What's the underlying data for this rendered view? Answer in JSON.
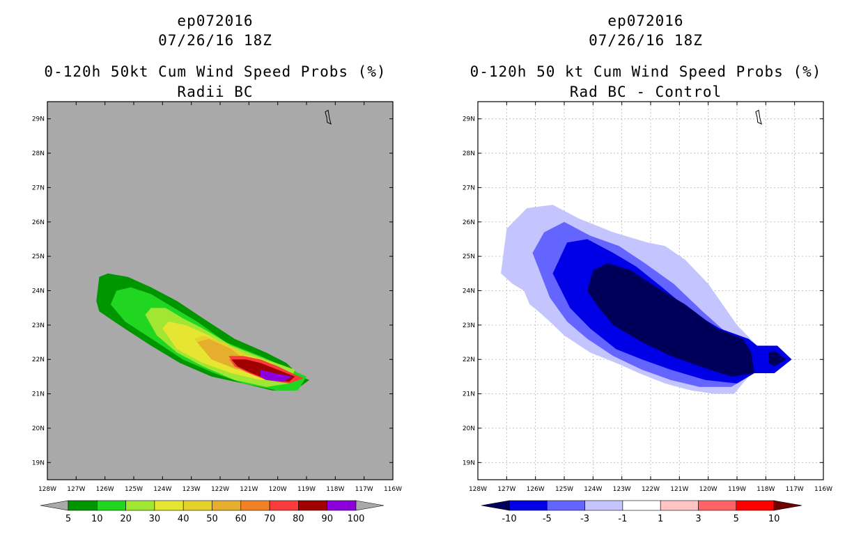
{
  "chart_data": [
    {
      "type": "heatmap",
      "title": {
        "storm": "ep072016",
        "datetime": "07/26/16 18Z",
        "product": "0-120h 50kt Cum Wind Speed Probs (%)",
        "subtitle": "Radii BC"
      },
      "background_color": "#a9a9a9",
      "grid": false,
      "lon_range": [
        -128,
        -116
      ],
      "lat_range": [
        18.5,
        29.5
      ],
      "lon_tick_labels": [
        "128W",
        "127W",
        "126W",
        "125W",
        "124W",
        "123W",
        "122W",
        "121W",
        "120W",
        "119W",
        "118W",
        "117W",
        "116W"
      ],
      "lat_tick_labels": [
        "19N",
        "20N",
        "21N",
        "22N",
        "23N",
        "24N",
        "25N",
        "26N",
        "27N",
        "28N",
        "29N"
      ],
      "colorbar": {
        "labels": [
          "5",
          "10",
          "20",
          "30",
          "40",
          "50",
          "60",
          "70",
          "80",
          "90",
          "100"
        ],
        "colors": [
          "#009600",
          "#21d621",
          "#a0e632",
          "#e6e632",
          "#e6d22d",
          "#e6ae2d",
          "#f08228",
          "#fa3c3c",
          "#a00000",
          "#8c00dc"
        ],
        "under_color": "#a9a9a9",
        "over_color": "#a9a9a9"
      },
      "levels": [
        {
          "min": 5,
          "color": "#009600",
          "poly": [
            [
              -126.3,
              23.7
            ],
            [
              -126.2,
              24.4
            ],
            [
              -125.9,
              24.5
            ],
            [
              -125.2,
              24.4
            ],
            [
              -124.4,
              24.1
            ],
            [
              -123.5,
              23.7
            ],
            [
              -122.6,
              23.2
            ],
            [
              -121.5,
              22.6
            ],
            [
              -120.4,
              22.2
            ],
            [
              -119.7,
              21.9
            ],
            [
              -119.2,
              21.5
            ],
            [
              -118.9,
              21.4
            ],
            [
              -119.4,
              21.1
            ],
            [
              -120.2,
              21.1
            ],
            [
              -121.2,
              21.3
            ],
            [
              -122.3,
              21.5
            ],
            [
              -123.4,
              21.9
            ],
            [
              -124.4,
              22.4
            ],
            [
              -125.5,
              23.0
            ],
            [
              -126.2,
              23.4
            ]
          ]
        },
        {
          "min": 10,
          "color": "#21d621",
          "poly": [
            [
              -125.8,
              23.6
            ],
            [
              -125.6,
              24.0
            ],
            [
              -125.1,
              24.1
            ],
            [
              -124.4,
              23.9
            ],
            [
              -123.6,
              23.5
            ],
            [
              -122.8,
              23.1
            ],
            [
              -121.8,
              22.5
            ],
            [
              -120.6,
              22.1
            ],
            [
              -119.8,
              21.8
            ],
            [
              -119.0,
              21.5
            ],
            [
              -119.3,
              21.1
            ],
            [
              -120.0,
              21.1
            ],
            [
              -121.2,
              21.3
            ],
            [
              -122.2,
              21.6
            ],
            [
              -123.3,
              22.0
            ],
            [
              -124.2,
              22.5
            ],
            [
              -125.3,
              23.1
            ]
          ]
        },
        {
          "min": 20,
          "color": "#a0e632",
          "poly": [
            [
              -124.6,
              23.3
            ],
            [
              -124.4,
              23.5
            ],
            [
              -123.9,
              23.5
            ],
            [
              -123.3,
              23.2
            ],
            [
              -122.6,
              22.9
            ],
            [
              -121.6,
              22.4
            ],
            [
              -120.4,
              22.0
            ],
            [
              -119.4,
              21.7
            ],
            [
              -119.6,
              21.3
            ],
            [
              -120.4,
              21.2
            ],
            [
              -121.5,
              21.4
            ],
            [
              -122.6,
              21.8
            ],
            [
              -123.5,
              22.2
            ],
            [
              -124.2,
              22.7
            ]
          ]
        },
        {
          "min": 30,
          "color": "#e6e632",
          "poly": [
            [
              -124.0,
              22.9
            ],
            [
              -123.8,
              23.1
            ],
            [
              -123.2,
              23.0
            ],
            [
              -122.4,
              22.7
            ],
            [
              -121.3,
              22.2
            ],
            [
              -120.2,
              21.9
            ],
            [
              -119.8,
              21.5
            ],
            [
              -120.6,
              21.4
            ],
            [
              -121.6,
              21.6
            ],
            [
              -122.6,
              21.9
            ],
            [
              -123.5,
              22.3
            ]
          ]
        },
        {
          "min": 40,
          "color": "#e6d22d",
          "poly": [
            [
              -122.9,
              22.6
            ],
            [
              -122.6,
              22.7
            ],
            [
              -121.9,
              22.5
            ],
            [
              -121.0,
              22.1
            ],
            [
              -120.1,
              21.8
            ],
            [
              -120.5,
              21.5
            ],
            [
              -121.4,
              21.7
            ],
            [
              -122.3,
              22.0
            ]
          ]
        },
        {
          "min": 50,
          "color": "#e6ae2d",
          "poly": [
            [
              -122.8,
              22.5
            ],
            [
              -122.4,
              22.6
            ],
            [
              -121.6,
              22.3
            ],
            [
              -121.0,
              21.9
            ],
            [
              -121.4,
              21.7
            ],
            [
              -122.3,
              22.0
            ]
          ]
        },
        {
          "min": 60,
          "color": "#f08228",
          "poly": [
            [
              -121.7,
              22.0
            ],
            [
              -121.3,
              22.05
            ],
            [
              -120.8,
              21.9
            ],
            [
              -120.5,
              21.6
            ],
            [
              -121.0,
              21.6
            ],
            [
              -121.5,
              21.8
            ]
          ]
        },
        {
          "min": 70,
          "color": "#fa3c3c",
          "poly": [
            [
              -121.7,
              22.1
            ],
            [
              -121.2,
              22.1
            ],
            [
              -120.6,
              22.0
            ],
            [
              -120.0,
              21.8
            ],
            [
              -119.5,
              21.6
            ],
            [
              -119.1,
              21.45
            ],
            [
              -119.6,
              21.3
            ],
            [
              -120.4,
              21.4
            ],
            [
              -121.0,
              21.6
            ],
            [
              -121.5,
              21.8
            ]
          ]
        },
        {
          "min": 80,
          "color": "#a00000",
          "poly": [
            [
              -121.6,
              22.0
            ],
            [
              -121.1,
              22.0
            ],
            [
              -120.6,
              21.9
            ],
            [
              -120.0,
              21.7
            ],
            [
              -119.4,
              21.5
            ],
            [
              -119.6,
              21.35
            ],
            [
              -120.3,
              21.4
            ],
            [
              -120.9,
              21.6
            ],
            [
              -121.4,
              21.8
            ]
          ]
        },
        {
          "min": 90,
          "color": "#8c00dc",
          "poly": [
            [
              -120.6,
              21.7
            ],
            [
              -120.1,
              21.6
            ],
            [
              -119.5,
              21.5
            ],
            [
              -119.8,
              21.35
            ],
            [
              -120.4,
              21.4
            ],
            [
              -120.6,
              21.5
            ]
          ]
        }
      ]
    },
    {
      "type": "heatmap",
      "title": {
        "storm": "ep072016",
        "datetime": "07/26/16 18Z",
        "product": "0-120h 50 kt Cum Wind Speed Probs (%)",
        "subtitle": "Rad BC - Control"
      },
      "background_color": "#ffffff",
      "grid": true,
      "lon_range": [
        -128,
        -116
      ],
      "lat_range": [
        18.5,
        29.5
      ],
      "lon_tick_labels": [
        "128W",
        "127W",
        "126W",
        "125W",
        "124W",
        "123W",
        "122W",
        "121W",
        "120W",
        "119W",
        "118W",
        "117W",
        "116W"
      ],
      "lat_tick_labels": [
        "19N",
        "20N",
        "21N",
        "22N",
        "23N",
        "24N",
        "25N",
        "26N",
        "27N",
        "28N",
        "29N"
      ],
      "colorbar": {
        "labels": [
          "-10",
          "-5",
          "-3",
          "-1",
          "1",
          "3",
          "5",
          "10"
        ],
        "colors": [
          "#0000e6",
          "#6464ff",
          "#c4c4ff",
          "#ffffff",
          "#ffc4c4",
          "#ff6464",
          "#ff0000"
        ],
        "under_color": "#00005a",
        "over_color": "#6e0000"
      },
      "levels": [
        {
          "max": -1,
          "color": "#c4c4ff",
          "poly": [
            [
              -127.2,
              24.5
            ],
            [
              -127.0,
              25.8
            ],
            [
              -126.3,
              26.4
            ],
            [
              -125.4,
              26.5
            ],
            [
              -124.5,
              26.1
            ],
            [
              -123.3,
              25.7
            ],
            [
              -122.1,
              25.4
            ],
            [
              -121.5,
              25.3
            ],
            [
              -120.8,
              24.9
            ],
            [
              -120.0,
              24.2
            ],
            [
              -119.5,
              23.6
            ],
            [
              -119.0,
              23.0
            ],
            [
              -118.3,
              22.4
            ],
            [
              -117.8,
              22.0
            ],
            [
              -118.5,
              21.6
            ],
            [
              -119.1,
              21.0
            ],
            [
              -119.8,
              21.0
            ],
            [
              -120.6,
              21.1
            ],
            [
              -121.5,
              21.3
            ],
            [
              -122.4,
              21.6
            ],
            [
              -123.2,
              21.9
            ],
            [
              -124.1,
              22.2
            ],
            [
              -125.0,
              22.7
            ],
            [
              -125.5,
              23.1
            ],
            [
              -125.9,
              23.4
            ],
            [
              -126.2,
              23.6
            ],
            [
              -126.4,
              24.0
            ],
            [
              -126.8,
              24.2
            ]
          ]
        },
        {
          "max": -3,
          "color": "#6464ff",
          "poly": [
            [
              -126.1,
              25.1
            ],
            [
              -125.7,
              25.7
            ],
            [
              -125.0,
              26.0
            ],
            [
              -124.1,
              25.6
            ],
            [
              -123.1,
              25.3
            ],
            [
              -122.2,
              24.8
            ],
            [
              -121.2,
              24.2
            ],
            [
              -120.2,
              23.4
            ],
            [
              -119.4,
              22.8
            ],
            [
              -118.5,
              22.2
            ],
            [
              -118.0,
              22.0
            ],
            [
              -118.4,
              21.6
            ],
            [
              -119.2,
              21.2
            ],
            [
              -120.3,
              21.2
            ],
            [
              -121.3,
              21.4
            ],
            [
              -122.3,
              21.7
            ],
            [
              -123.3,
              22.1
            ],
            [
              -124.2,
              22.6
            ],
            [
              -124.9,
              23.1
            ],
            [
              -125.5,
              23.8
            ]
          ]
        },
        {
          "max": -5,
          "color": "#0000e6",
          "poly": [
            [
              -125.4,
              24.5
            ],
            [
              -124.9,
              25.4
            ],
            [
              -124.2,
              25.5
            ],
            [
              -123.3,
              25.1
            ],
            [
              -122.5,
              24.7
            ],
            [
              -121.6,
              24.1
            ],
            [
              -120.6,
              23.4
            ],
            [
              -119.6,
              22.9
            ],
            [
              -118.6,
              22.6
            ],
            [
              -118.3,
              22.4
            ],
            [
              -117.6,
              22.4
            ],
            [
              -117.1,
              22.0
            ],
            [
              -117.7,
              21.6
            ],
            [
              -118.4,
              21.6
            ],
            [
              -119.0,
              21.3
            ],
            [
              -120.1,
              21.4
            ],
            [
              -121.3,
              21.7
            ],
            [
              -122.3,
              22.0
            ],
            [
              -123.2,
              22.3
            ],
            [
              -124.1,
              22.9
            ],
            [
              -124.8,
              23.5
            ]
          ]
        },
        {
          "max": -10,
          "color": "#00005a",
          "poly": [
            [
              -124.2,
              24.0
            ],
            [
              -124.0,
              24.6
            ],
            [
              -123.5,
              24.8
            ],
            [
              -122.7,
              24.6
            ],
            [
              -121.8,
              24.1
            ],
            [
              -120.8,
              23.6
            ],
            [
              -119.7,
              22.9
            ],
            [
              -118.8,
              22.6
            ],
            [
              -118.5,
              22.2
            ],
            [
              -118.4,
              21.6
            ],
            [
              -119.2,
              21.5
            ],
            [
              -120.3,
              21.8
            ],
            [
              -121.3,
              22.1
            ],
            [
              -122.3,
              22.5
            ],
            [
              -123.3,
              23.0
            ],
            [
              -123.8,
              23.5
            ]
          ]
        },
        {
          "max": -10,
          "color": "#00005a",
          "poly": [
            [
              -117.9,
              22.2
            ],
            [
              -117.7,
              22.25
            ],
            [
              -117.3,
              22.0
            ],
            [
              -117.7,
              21.8
            ],
            [
              -117.9,
              21.9
            ]
          ]
        }
      ]
    }
  ]
}
